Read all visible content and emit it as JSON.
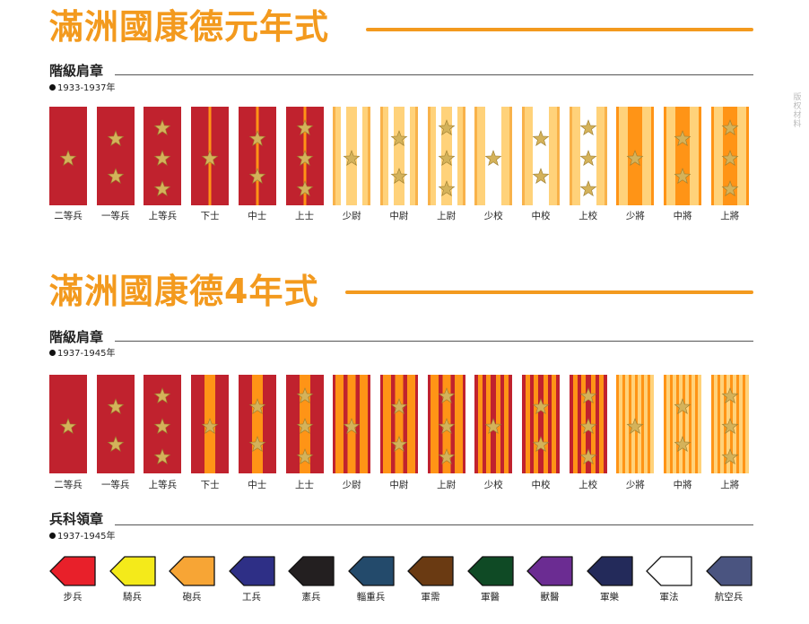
{
  "colors": {
    "orange": "#f39a1e",
    "red": "#c0222e",
    "gold_light": "#ffd27a",
    "gold_dark": "#ff9416",
    "star": "#d4b25a"
  },
  "watermark": "版权材料",
  "section1": {
    "title": "滿洲國康德元年式",
    "subtitle": "階級肩章",
    "period": "1933-1937年",
    "boards": [
      {
        "label": "二等兵",
        "style": "red",
        "stars": 1
      },
      {
        "label": "一等兵",
        "style": "red",
        "stars": 2
      },
      {
        "label": "上等兵",
        "style": "red",
        "stars": 3
      },
      {
        "label": "下士",
        "style": "red-line",
        "stars": 1
      },
      {
        "label": "中士",
        "style": "red-line",
        "stars": 2
      },
      {
        "label": "上士",
        "style": "red-line",
        "stars": 3
      },
      {
        "label": "少尉",
        "style": "gold-stripe",
        "stars": 1
      },
      {
        "label": "中尉",
        "style": "gold-stripe",
        "stars": 2
      },
      {
        "label": "上尉",
        "style": "gold-stripe",
        "stars": 3
      },
      {
        "label": "少校",
        "style": "gold-wide",
        "stars": 1
      },
      {
        "label": "中校",
        "style": "gold-wide",
        "stars": 2
      },
      {
        "label": "上校",
        "style": "gold-wide",
        "stars": 3
      },
      {
        "label": "少將",
        "style": "gold-general",
        "stars": 1
      },
      {
        "label": "中將",
        "style": "gold-general",
        "stars": 2
      },
      {
        "label": "上將",
        "style": "gold-general",
        "stars": 3
      }
    ]
  },
  "section2": {
    "title": "滿洲國康德4年式",
    "subtitle": "階級肩章",
    "period": "1937-1945年",
    "boards": [
      {
        "label": "二等兵",
        "style": "red",
        "stars": 1
      },
      {
        "label": "一等兵",
        "style": "red",
        "stars": 2
      },
      {
        "label": "上等兵",
        "style": "red",
        "stars": 3
      },
      {
        "label": "下士",
        "style": "red-wideline",
        "stars": 1
      },
      {
        "label": "中士",
        "style": "red-wideline",
        "stars": 2
      },
      {
        "label": "上士",
        "style": "red-wideline",
        "stars": 3
      },
      {
        "label": "少尉",
        "style": "red-gold-stripe",
        "stars": 1
      },
      {
        "label": "中尉",
        "style": "red-gold-stripe",
        "stars": 2
      },
      {
        "label": "上尉",
        "style": "red-gold-stripe",
        "stars": 3
      },
      {
        "label": "少校",
        "style": "red-gold-multi",
        "stars": 1
      },
      {
        "label": "中校",
        "style": "red-gold-multi",
        "stars": 2
      },
      {
        "label": "上校",
        "style": "red-gold-multi",
        "stars": 3
      },
      {
        "label": "少將",
        "style": "gold-stripes",
        "stars": 1
      },
      {
        "label": "中將",
        "style": "gold-stripes",
        "stars": 2
      },
      {
        "label": "上將",
        "style": "gold-stripes",
        "stars": 3
      }
    ]
  },
  "section3": {
    "subtitle": "兵科領章",
    "period": "1937-1945年",
    "badges": [
      {
        "label": "步兵",
        "color": "#e8202a"
      },
      {
        "label": "騎兵",
        "color": "#f4ea1a"
      },
      {
        "label": "砲兵",
        "color": "#f7a535"
      },
      {
        "label": "工兵",
        "color": "#2e2f86"
      },
      {
        "label": "憲兵",
        "color": "#231f20"
      },
      {
        "label": "輜重兵",
        "color": "#234a6b"
      },
      {
        "label": "軍需",
        "color": "#6a3a12"
      },
      {
        "label": "軍醫",
        "color": "#0f4a25"
      },
      {
        "label": "獸醫",
        "color": "#6b2c92"
      },
      {
        "label": "軍樂",
        "color": "#232a5a"
      },
      {
        "label": "軍法",
        "color": "#ffffff"
      },
      {
        "label": "航空兵",
        "color": "#4a5480"
      }
    ]
  }
}
